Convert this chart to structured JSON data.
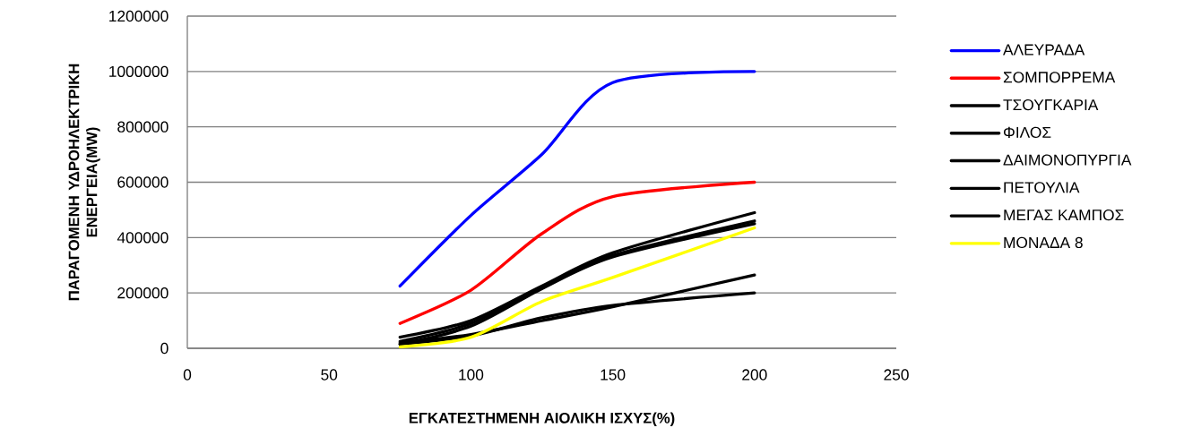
{
  "chart_data": {
    "type": "line",
    "xlabel": "ΕΓΚΑΤΕΣΤΗΜΕΝΗ ΑΙΟΛΙΚΗ ΙΣΧΥΣ(%)",
    "ylabel": "ΠΑΡΑΓΟΜΕΝΗ ΥΔΡΟΗΛΕΚΤΡΙΚΗ ΕΝΕΡΓΕΙΑ(MW)",
    "x": [
      75,
      100,
      125,
      150,
      200
    ],
    "series": [
      {
        "name": "ΑΛΕΥΡΑΔΑ",
        "color": "#0000ff",
        "values": [
          225000,
          480000,
          700000,
          960000,
          1000000
        ]
      },
      {
        "name": "ΣΟΜΠΟΡΡΕΜΑ",
        "color": "#ff0000",
        "values": [
          90000,
          210000,
          414000,
          548000,
          600000
        ]
      },
      {
        "name": "ΤΣΟΥΓΚΑΡΙΑ",
        "color": "#000000",
        "values": [
          40000,
          100000,
          225000,
          345000,
          490000
        ]
      },
      {
        "name": "ΦΙΛΟΣ",
        "color": "#000000",
        "values": [
          20000,
          50000,
          100000,
          150000,
          265000
        ]
      },
      {
        "name": "ΔΑΙΜΟΝΟΠΥΡΓΙΑ",
        "color": "#000000",
        "values": [
          25000,
          90000,
          220000,
          335000,
          460000
        ]
      },
      {
        "name": "ΠΕΤΟΥΛΙΑ",
        "color": "#000000",
        "values": [
          15000,
          45000,
          110000,
          155000,
          200000
        ]
      },
      {
        "name": "ΜΕΓΑΣ ΚΑΜΠΟΣ",
        "color": "#000000",
        "values": [
          15000,
          80000,
          215000,
          330000,
          450000
        ]
      },
      {
        "name": "ΜΟΝΑΔΑ 8",
        "color": "#ffff00",
        "values": [
          5000,
          40000,
          169000,
          256000,
          435000
        ]
      }
    ],
    "xlim": [
      0,
      250
    ],
    "xticks": [
      0,
      50,
      100,
      150,
      200,
      250
    ],
    "ylim": [
      0,
      1200000
    ],
    "yticks": [
      0,
      200000,
      400000,
      600000,
      800000,
      1000000,
      1200000
    ],
    "grid": "y",
    "legend": "right",
    "marker": "none",
    "line_style": "solid"
  }
}
